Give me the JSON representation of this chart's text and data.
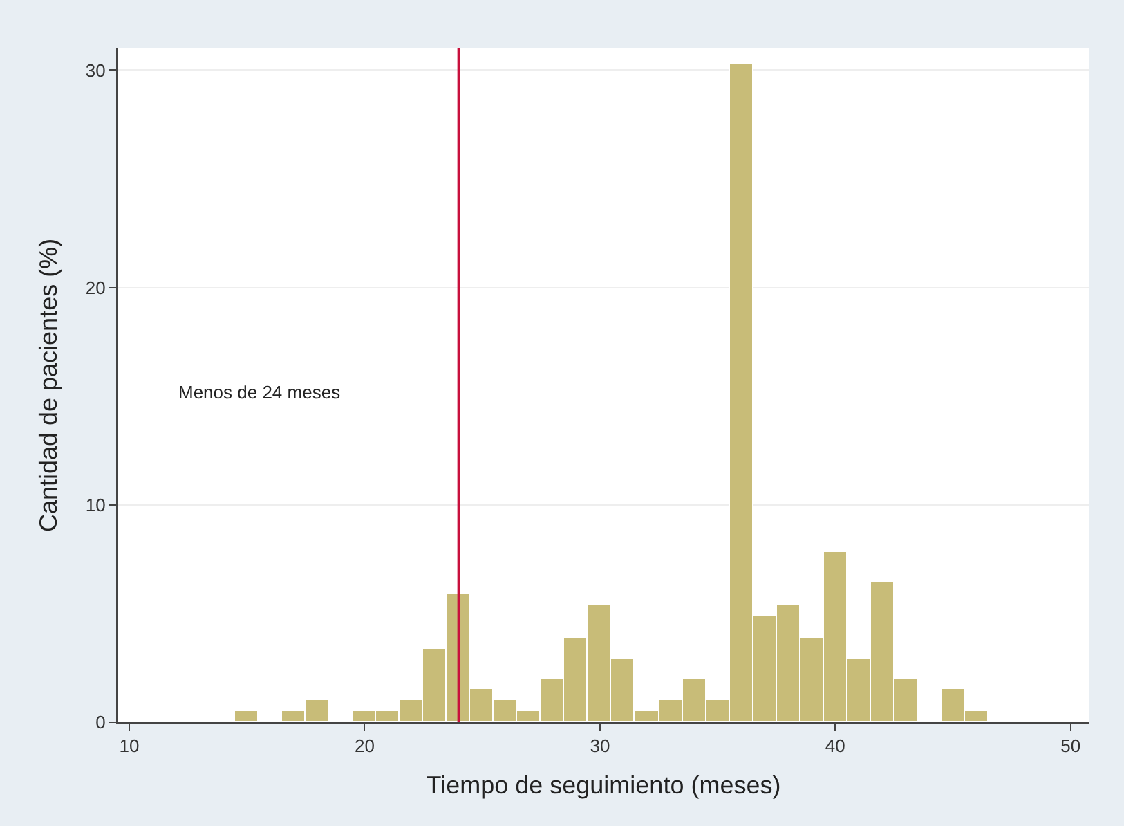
{
  "chart_data": {
    "type": "histogram",
    "xlabel": "Tiempo de seguimiento (meses)",
    "ylabel": "Cantidad de pacientes (%)",
    "bins": [
      14.5,
      15.5,
      16.5,
      17.5,
      18.5,
      19.5,
      20.5,
      21.5,
      22.5,
      23.5,
      24.5,
      25.5,
      26.5,
      27.5,
      28.5,
      29.5,
      30.5,
      31.5,
      32.5,
      33.5,
      34.5,
      35.5,
      36.5,
      37.5,
      38.5,
      39.5,
      40.5,
      41.5,
      42.5,
      43.5,
      44.5,
      45.5,
      46.5
    ],
    "values": [
      0.5,
      0,
      0.5,
      1,
      0,
      0.5,
      0.5,
      1,
      3.4,
      5.9,
      1.5,
      1,
      0.5,
      2,
      3.9,
      5.4,
      2.9,
      0.5,
      1,
      2,
      1,
      30.3,
      4.9,
      5.4,
      3.9,
      7.8,
      2.9,
      6.4,
      2,
      0,
      1.5,
      0.5
    ],
    "color": "#c8bc78",
    "xlim": [
      9.5,
      50.8
    ],
    "xticks": [
      10,
      20,
      30,
      40,
      50
    ],
    "ylim": [
      0,
      31
    ],
    "yticks": [
      0,
      10,
      20,
      30
    ],
    "grid": "y",
    "ref_lines": [
      {
        "axis": "x",
        "value": 24,
        "color": "#c8103c"
      }
    ],
    "annotations": [
      "Menos de 24 meses"
    ]
  }
}
